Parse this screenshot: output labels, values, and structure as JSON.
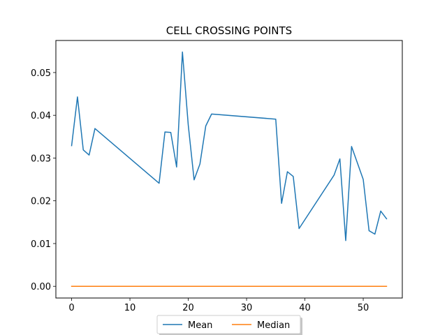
{
  "chart_data": {
    "type": "line",
    "title": "CELL CROSSING POINTS",
    "xlabel": "",
    "ylabel": "",
    "xlim": [
      -2.7,
      56.7
    ],
    "ylim": [
      -0.00274,
      0.0575
    ],
    "xticks": [
      0,
      10,
      20,
      30,
      40,
      50
    ],
    "yticks": [
      0.0,
      0.01,
      0.02,
      0.03,
      0.04,
      0.05
    ],
    "ytick_labels": [
      "0.00",
      "0.01",
      "0.02",
      "0.03",
      "0.04",
      "0.05"
    ],
    "grid": false,
    "legend_position": "bottom-center",
    "series": [
      {
        "name": "Mean",
        "color": "#1f77b4",
        "x": [
          0,
          1,
          2,
          3,
          4,
          15,
          16,
          17,
          18,
          19,
          20,
          21,
          22,
          23,
          24,
          35,
          36,
          37,
          38,
          39,
          45,
          46,
          47,
          48,
          50,
          51,
          52,
          53,
          54
        ],
        "y": [
          0.0329,
          0.0443,
          0.0319,
          0.0307,
          0.0369,
          0.0241,
          0.0361,
          0.036,
          0.0279,
          0.0548,
          0.0377,
          0.0249,
          0.0286,
          0.0375,
          0.0403,
          0.0391,
          0.0194,
          0.0268,
          0.0257,
          0.0135,
          0.026,
          0.0298,
          0.0107,
          0.0327,
          0.025,
          0.013,
          0.0122,
          0.0176,
          0.0158
        ]
      },
      {
        "name": "Median",
        "color": "#ff7f0e",
        "x": [
          0,
          54
        ],
        "y": [
          0.0,
          0.0
        ]
      }
    ]
  }
}
